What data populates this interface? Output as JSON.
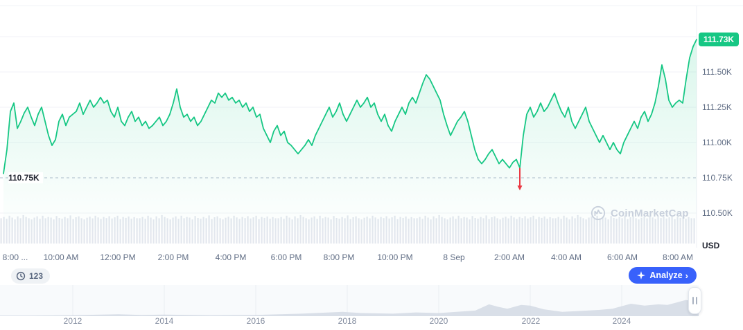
{
  "colors": {
    "accent_green": "#16c784",
    "accent_red": "#ea3943",
    "analyze_blue": "#3861fb",
    "axis_text": "#616e85",
    "volume_gray": "#d2d8e3",
    "history_gray": "#cfd6e2"
  },
  "watermark": {
    "text": "CoinMarketCap"
  },
  "controls": {
    "history_badge": "123",
    "analyze_label": "Analyze",
    "analyze_chevron": "›"
  },
  "chart_data": [
    {
      "type": "line",
      "unit": "USD",
      "current_price_k": 111.73,
      "current_price_label": "111.73K",
      "open_price_k": 110.75,
      "open_price_label": "110.75K",
      "ylim_k": [
        110.5,
        111.75
      ],
      "y_ticks": [
        "111.50K",
        "111.25K",
        "111.00K",
        "110.75K",
        "110.50K"
      ],
      "y_tick_values_k": [
        111.5,
        111.25,
        111.0,
        110.75,
        110.5
      ],
      "y_gridline_values_k": [
        111.75,
        111.5,
        111.25,
        111.0,
        110.5
      ],
      "x_ticks": [
        "8:00 ...",
        "10:00 AM",
        "12:00 PM",
        "2:00 PM",
        "4:00 PM",
        "6:00 PM",
        "8:00 PM",
        "10:00 PM",
        "8 Sep",
        "2:00 AM",
        "4:00 AM",
        "6:00 AM",
        "8:00 AM"
      ],
      "prices_k": [
        110.78,
        110.95,
        111.22,
        111.28,
        111.1,
        111.15,
        111.21,
        111.25,
        111.18,
        111.12,
        111.2,
        111.25,
        111.15,
        111.05,
        110.98,
        111.02,
        111.15,
        111.2,
        111.12,
        111.18,
        111.2,
        111.22,
        111.28,
        111.2,
        111.25,
        111.3,
        111.25,
        111.28,
        111.32,
        111.28,
        111.3,
        111.22,
        111.18,
        111.25,
        111.15,
        111.12,
        111.18,
        111.22,
        111.15,
        111.18,
        111.12,
        111.15,
        111.1,
        111.12,
        111.15,
        111.18,
        111.12,
        111.15,
        111.2,
        111.28,
        111.38,
        111.25,
        111.18,
        111.2,
        111.15,
        111.18,
        111.12,
        111.15,
        111.2,
        111.25,
        111.3,
        111.28,
        111.35,
        111.32,
        111.35,
        111.3,
        111.32,
        111.28,
        111.3,
        111.25,
        111.28,
        111.22,
        111.25,
        111.18,
        111.2,
        111.1,
        111.05,
        111.0,
        111.08,
        111.12,
        111.05,
        111.08,
        111.0,
        110.98,
        110.95,
        110.92,
        110.95,
        110.98,
        111.02,
        110.98,
        111.05,
        111.1,
        111.15,
        111.2,
        111.25,
        111.18,
        111.22,
        111.28,
        111.2,
        111.15,
        111.2,
        111.25,
        111.3,
        111.25,
        111.28,
        111.32,
        111.25,
        111.28,
        111.2,
        111.15,
        111.2,
        111.12,
        111.08,
        111.15,
        111.2,
        111.25,
        111.2,
        111.28,
        111.32,
        111.28,
        111.35,
        111.42,
        111.48,
        111.45,
        111.4,
        111.35,
        111.3,
        111.2,
        111.12,
        111.05,
        111.1,
        111.15,
        111.18,
        111.22,
        111.15,
        111.05,
        110.95,
        110.88,
        110.85,
        110.88,
        110.92,
        110.95,
        110.9,
        110.85,
        110.88,
        110.85,
        110.82,
        110.86,
        110.88,
        110.82,
        111.05,
        111.2,
        111.25,
        111.18,
        111.22,
        111.28,
        111.22,
        111.25,
        111.3,
        111.35,
        111.28,
        111.22,
        111.18,
        111.25,
        111.15,
        111.1,
        111.15,
        111.2,
        111.25,
        111.15,
        111.1,
        111.05,
        111.0,
        111.05,
        111.0,
        110.95,
        111.0,
        110.95,
        110.92,
        111.0,
        111.05,
        111.1,
        111.15,
        111.1,
        111.18,
        111.22,
        111.15,
        111.2,
        111.28,
        111.4,
        111.55,
        111.45,
        111.3,
        111.25,
        111.28,
        111.3,
        111.28,
        111.45,
        111.6,
        111.68,
        111.73
      ],
      "dip_marker": {
        "index": 149,
        "low_k": 110.68
      },
      "volume_rel": [
        0.7,
        0.8,
        0.65,
        0.9,
        0.75,
        0.6,
        0.85,
        0.7,
        0.95,
        0.8,
        0.7,
        0.6,
        0.75,
        0.85,
        0.65,
        0.9,
        0.7,
        0.8,
        0.75,
        0.6,
        0.88,
        0.72,
        0.66,
        0.8,
        0.7,
        0.92,
        0.63,
        0.78,
        0.85,
        0.7,
        0.6,
        0.74,
        0.82,
        0.69,
        0.9,
        0.76,
        0.64,
        0.8,
        0.71,
        0.86,
        0.68,
        0.77,
        0.9,
        0.62,
        0.8,
        0.73,
        0.84,
        0.66,
        0.79,
        0.7
      ]
    },
    {
      "type": "area",
      "x_ticks": [
        "2012",
        "2014",
        "2016",
        "2018",
        "2020",
        "2022",
        "2024"
      ],
      "year_tick_values": [
        2012,
        2014,
        2016,
        2018,
        2020,
        2022,
        2024
      ],
      "points": [
        [
          2010.4,
          0.02
        ],
        [
          2011,
          0.02
        ],
        [
          2012,
          0.03
        ],
        [
          2013,
          0.06
        ],
        [
          2013.5,
          0.04
        ],
        [
          2014,
          0.05
        ],
        [
          2015,
          0.03
        ],
        [
          2016,
          0.04
        ],
        [
          2017,
          0.08
        ],
        [
          2017.9,
          0.14
        ],
        [
          2018.3,
          0.1
        ],
        [
          2019,
          0.08
        ],
        [
          2019.5,
          0.12
        ],
        [
          2020,
          0.1
        ],
        [
          2020.8,
          0.18
        ],
        [
          2021.1,
          0.38
        ],
        [
          2021.3,
          0.3
        ],
        [
          2021.5,
          0.24
        ],
        [
          2021.8,
          0.36
        ],
        [
          2022,
          0.34
        ],
        [
          2022.3,
          0.22
        ],
        [
          2022.7,
          0.14
        ],
        [
          2023,
          0.16
        ],
        [
          2023.5,
          0.2
        ],
        [
          2023.8,
          0.24
        ],
        [
          2024,
          0.32
        ],
        [
          2024.2,
          0.4
        ],
        [
          2024.5,
          0.34
        ],
        [
          2024.8,
          0.38
        ],
        [
          2025,
          0.36
        ],
        [
          2025.2,
          0.44
        ],
        [
          2025.4,
          0.52
        ],
        [
          2025.6,
          0.48
        ],
        [
          2025.7,
          0.5
        ]
      ]
    }
  ]
}
